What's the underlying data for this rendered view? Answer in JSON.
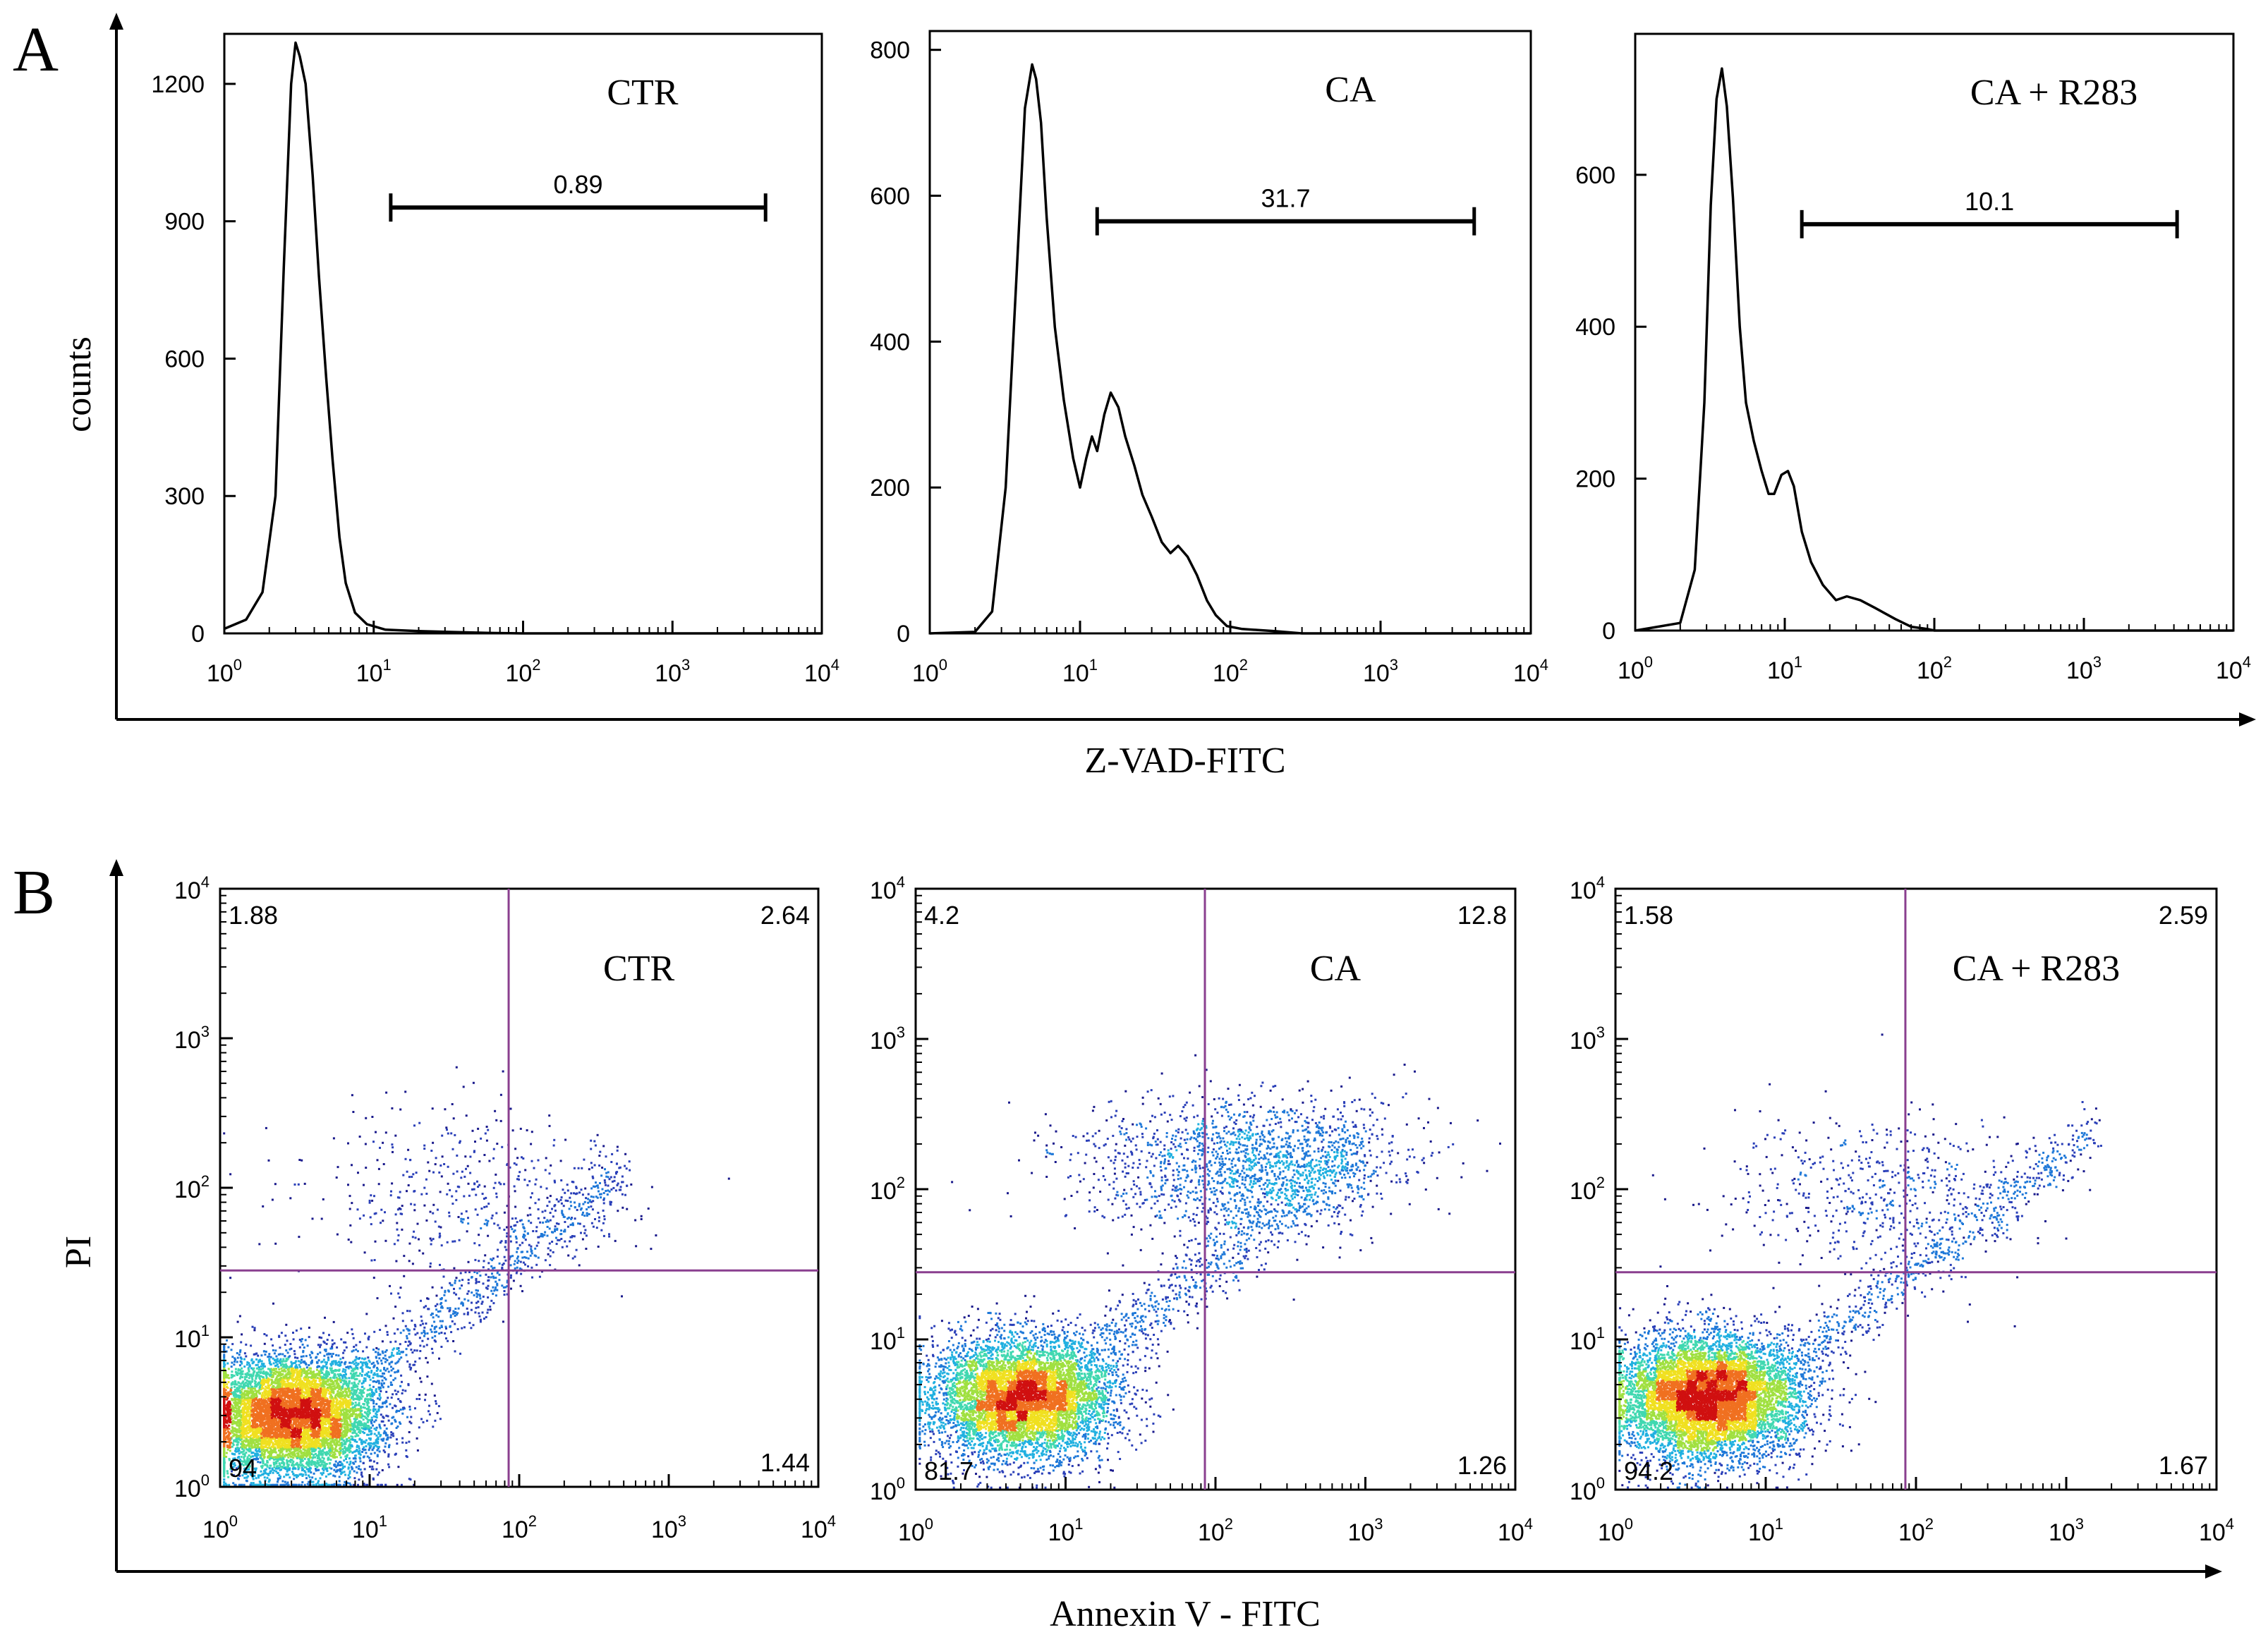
{
  "panel_a": {
    "letter": "A",
    "ylabel": "counts",
    "xlabel": "Z-VAD-FITC"
  },
  "panel_b": {
    "letter": "B",
    "ylabel": "PI",
    "xlabel": "Annexin V - FITC"
  },
  "log_tick_labels": [
    "10",
    "10",
    "10",
    "10",
    "10"
  ],
  "log_tick_exponents": [
    "0",
    "1",
    "2",
    "3",
    "4"
  ],
  "colors": {
    "axis": "#000000",
    "quadrant_line": "#8a3f8f",
    "density_low": "#1a1a8c",
    "density_mid": "#20b0e0",
    "density_high": "#f0e020",
    "density_peak": "#d01010"
  },
  "chart_data": [
    {
      "type": "area",
      "panel": "A",
      "title": "CTR",
      "xlabel": "Z-VAD-FITC",
      "ylabel": "counts",
      "xscale": "log",
      "xlim": [
        1,
        10000
      ],
      "ylim": [
        0,
        1300
      ],
      "yticks": [
        0,
        300,
        600,
        900,
        1200
      ],
      "gate": {
        "label": "0.89",
        "x_start": 13,
        "x_end": 4200,
        "level": 930
      },
      "x": [
        1.0,
        1.4,
        1.8,
        2.2,
        2.5,
        2.8,
        3.0,
        3.2,
        3.5,
        3.9,
        4.3,
        4.8,
        5.3,
        5.9,
        6.5,
        7.5,
        9.0,
        12,
        20,
        35,
        60,
        100,
        1000,
        10000
      ],
      "values": [
        10,
        30,
        90,
        300,
        800,
        1200,
        1290,
        1260,
        1200,
        1000,
        780,
        560,
        380,
        210,
        110,
        45,
        20,
        8,
        5,
        3,
        1,
        0,
        0,
        0
      ]
    },
    {
      "type": "area",
      "panel": "A",
      "title": "CA",
      "xlabel": "Z-VAD-FITC",
      "ylabel": "counts",
      "xscale": "log",
      "xlim": [
        1,
        10000
      ],
      "ylim": [
        0,
        820
      ],
      "yticks": [
        0,
        200,
        400,
        600,
        800
      ],
      "gate": {
        "label": "31.7",
        "x_start": 13,
        "x_end": 4200,
        "level": 565
      },
      "x": [
        1.0,
        2.0,
        2.6,
        3.2,
        3.8,
        4.3,
        4.8,
        5.1,
        5.5,
        6.0,
        6.8,
        7.8,
        9.0,
        10,
        11,
        12,
        13,
        14.5,
        16,
        18,
        20,
        23,
        26,
        30,
        35,
        40,
        45,
        52,
        60,
        70,
        80,
        95,
        120,
        200,
        300,
        1000,
        10000
      ],
      "values": [
        0,
        2,
        30,
        200,
        500,
        720,
        780,
        760,
        700,
        570,
        420,
        320,
        240,
        200,
        240,
        270,
        250,
        300,
        330,
        310,
        270,
        230,
        190,
        160,
        125,
        110,
        120,
        105,
        80,
        45,
        25,
        10,
        6,
        3,
        0,
        0,
        0
      ]
    },
    {
      "type": "area",
      "panel": "A",
      "title": "CA + R283",
      "xlabel": "Z-VAD-FITC",
      "ylabel": "counts",
      "xscale": "log",
      "xlim": [
        1,
        10000
      ],
      "ylim": [
        0,
        780
      ],
      "yticks": [
        0,
        200,
        400,
        600
      ],
      "gate": {
        "label": "10.1",
        "x_start": 13,
        "x_end": 4200,
        "level": 535
      },
      "x": [
        1.0,
        2.0,
        2.5,
        2.9,
        3.2,
        3.5,
        3.8,
        4.1,
        4.5,
        5.0,
        5.5,
        6.2,
        7.0,
        7.8,
        8.5,
        9.5,
        10.5,
        11.5,
        13,
        15,
        18,
        22,
        26,
        32,
        40,
        55,
        70,
        90,
        100,
        1000,
        10000
      ],
      "values": [
        0,
        10,
        80,
        300,
        560,
        700,
        740,
        690,
        570,
        400,
        300,
        250,
        210,
        180,
        180,
        205,
        210,
        190,
        130,
        90,
        60,
        40,
        45,
        40,
        30,
        15,
        5,
        2,
        0,
        0,
        0
      ]
    },
    {
      "type": "scatter",
      "panel": "B",
      "title": "CTR",
      "xlabel": "Annexin V - FITC",
      "ylabel": "PI",
      "xscale": "log",
      "yscale": "log",
      "xlim": [
        1,
        10000
      ],
      "ylim": [
        1,
        10000
      ],
      "gate_lines": {
        "x": 85,
        "y": 28
      },
      "quadrants": {
        "upper_left": "1.88",
        "upper_right": "2.64",
        "lower_left": "94",
        "lower_right": "1.44"
      },
      "populations": [
        {
          "name": "viable",
          "cx": 3.0,
          "cy": 3.0,
          "sx": 0.3,
          "sy": 0.2,
          "weight": 0.86
        },
        {
          "name": "diagonal",
          "line": {
            "x0": 5,
            "y0": 3.5,
            "x1": 500,
            "y1": 130
          },
          "spread": 0.12,
          "weight": 0.09
        },
        {
          "name": "upper",
          "cx": 40,
          "cy": 90,
          "sx": 0.55,
          "sy": 0.3,
          "weight": 0.05
        }
      ]
    },
    {
      "type": "scatter",
      "panel": "B",
      "title": "CA",
      "xlabel": "Annexin V - FITC",
      "ylabel": "PI",
      "xscale": "log",
      "yscale": "log",
      "xlim": [
        1,
        10000
      ],
      "ylim": [
        1,
        10000
      ],
      "gate_lines": {
        "x": 85,
        "y": 28
      },
      "quadrants": {
        "upper_left": "4.2",
        "upper_right": "12.8",
        "lower_left": "81.7",
        "lower_right": "1.26"
      },
      "populations": [
        {
          "name": "viable",
          "cx": 5.0,
          "cy": 4.2,
          "sx": 0.3,
          "sy": 0.2,
          "weight": 0.72
        },
        {
          "name": "diagonal",
          "line": {
            "x0": 8,
            "y0": 4.5,
            "x1": 900,
            "y1": 200
          },
          "spread": 0.13,
          "weight": 0.1
        },
        {
          "name": "upper",
          "cx": 150,
          "cy": 150,
          "sx": 0.55,
          "sy": 0.22,
          "weight": 0.18
        }
      ]
    },
    {
      "type": "scatter",
      "panel": "B",
      "title": "CA + R283",
      "xlabel": "Annexin V - FITC",
      "ylabel": "PI",
      "xscale": "log",
      "yscale": "log",
      "xlim": [
        1,
        10000
      ],
      "ylim": [
        1,
        10000
      ],
      "gate_lines": {
        "x": 85,
        "y": 28
      },
      "quadrants": {
        "upper_left": "1.58",
        "upper_right": "2.59",
        "lower_left": "94.2",
        "lower_right": "1.67"
      },
      "populations": [
        {
          "name": "viable",
          "cx": 4.0,
          "cy": 4.2,
          "sx": 0.3,
          "sy": 0.2,
          "weight": 0.86
        },
        {
          "name": "diagonal",
          "line": {
            "x0": 8,
            "y0": 4.2,
            "x1": 1500,
            "y1": 250
          },
          "spread": 0.11,
          "weight": 0.08
        },
        {
          "name": "upper",
          "cx": 60,
          "cy": 100,
          "sx": 0.5,
          "sy": 0.25,
          "weight": 0.06
        }
      ]
    }
  ]
}
